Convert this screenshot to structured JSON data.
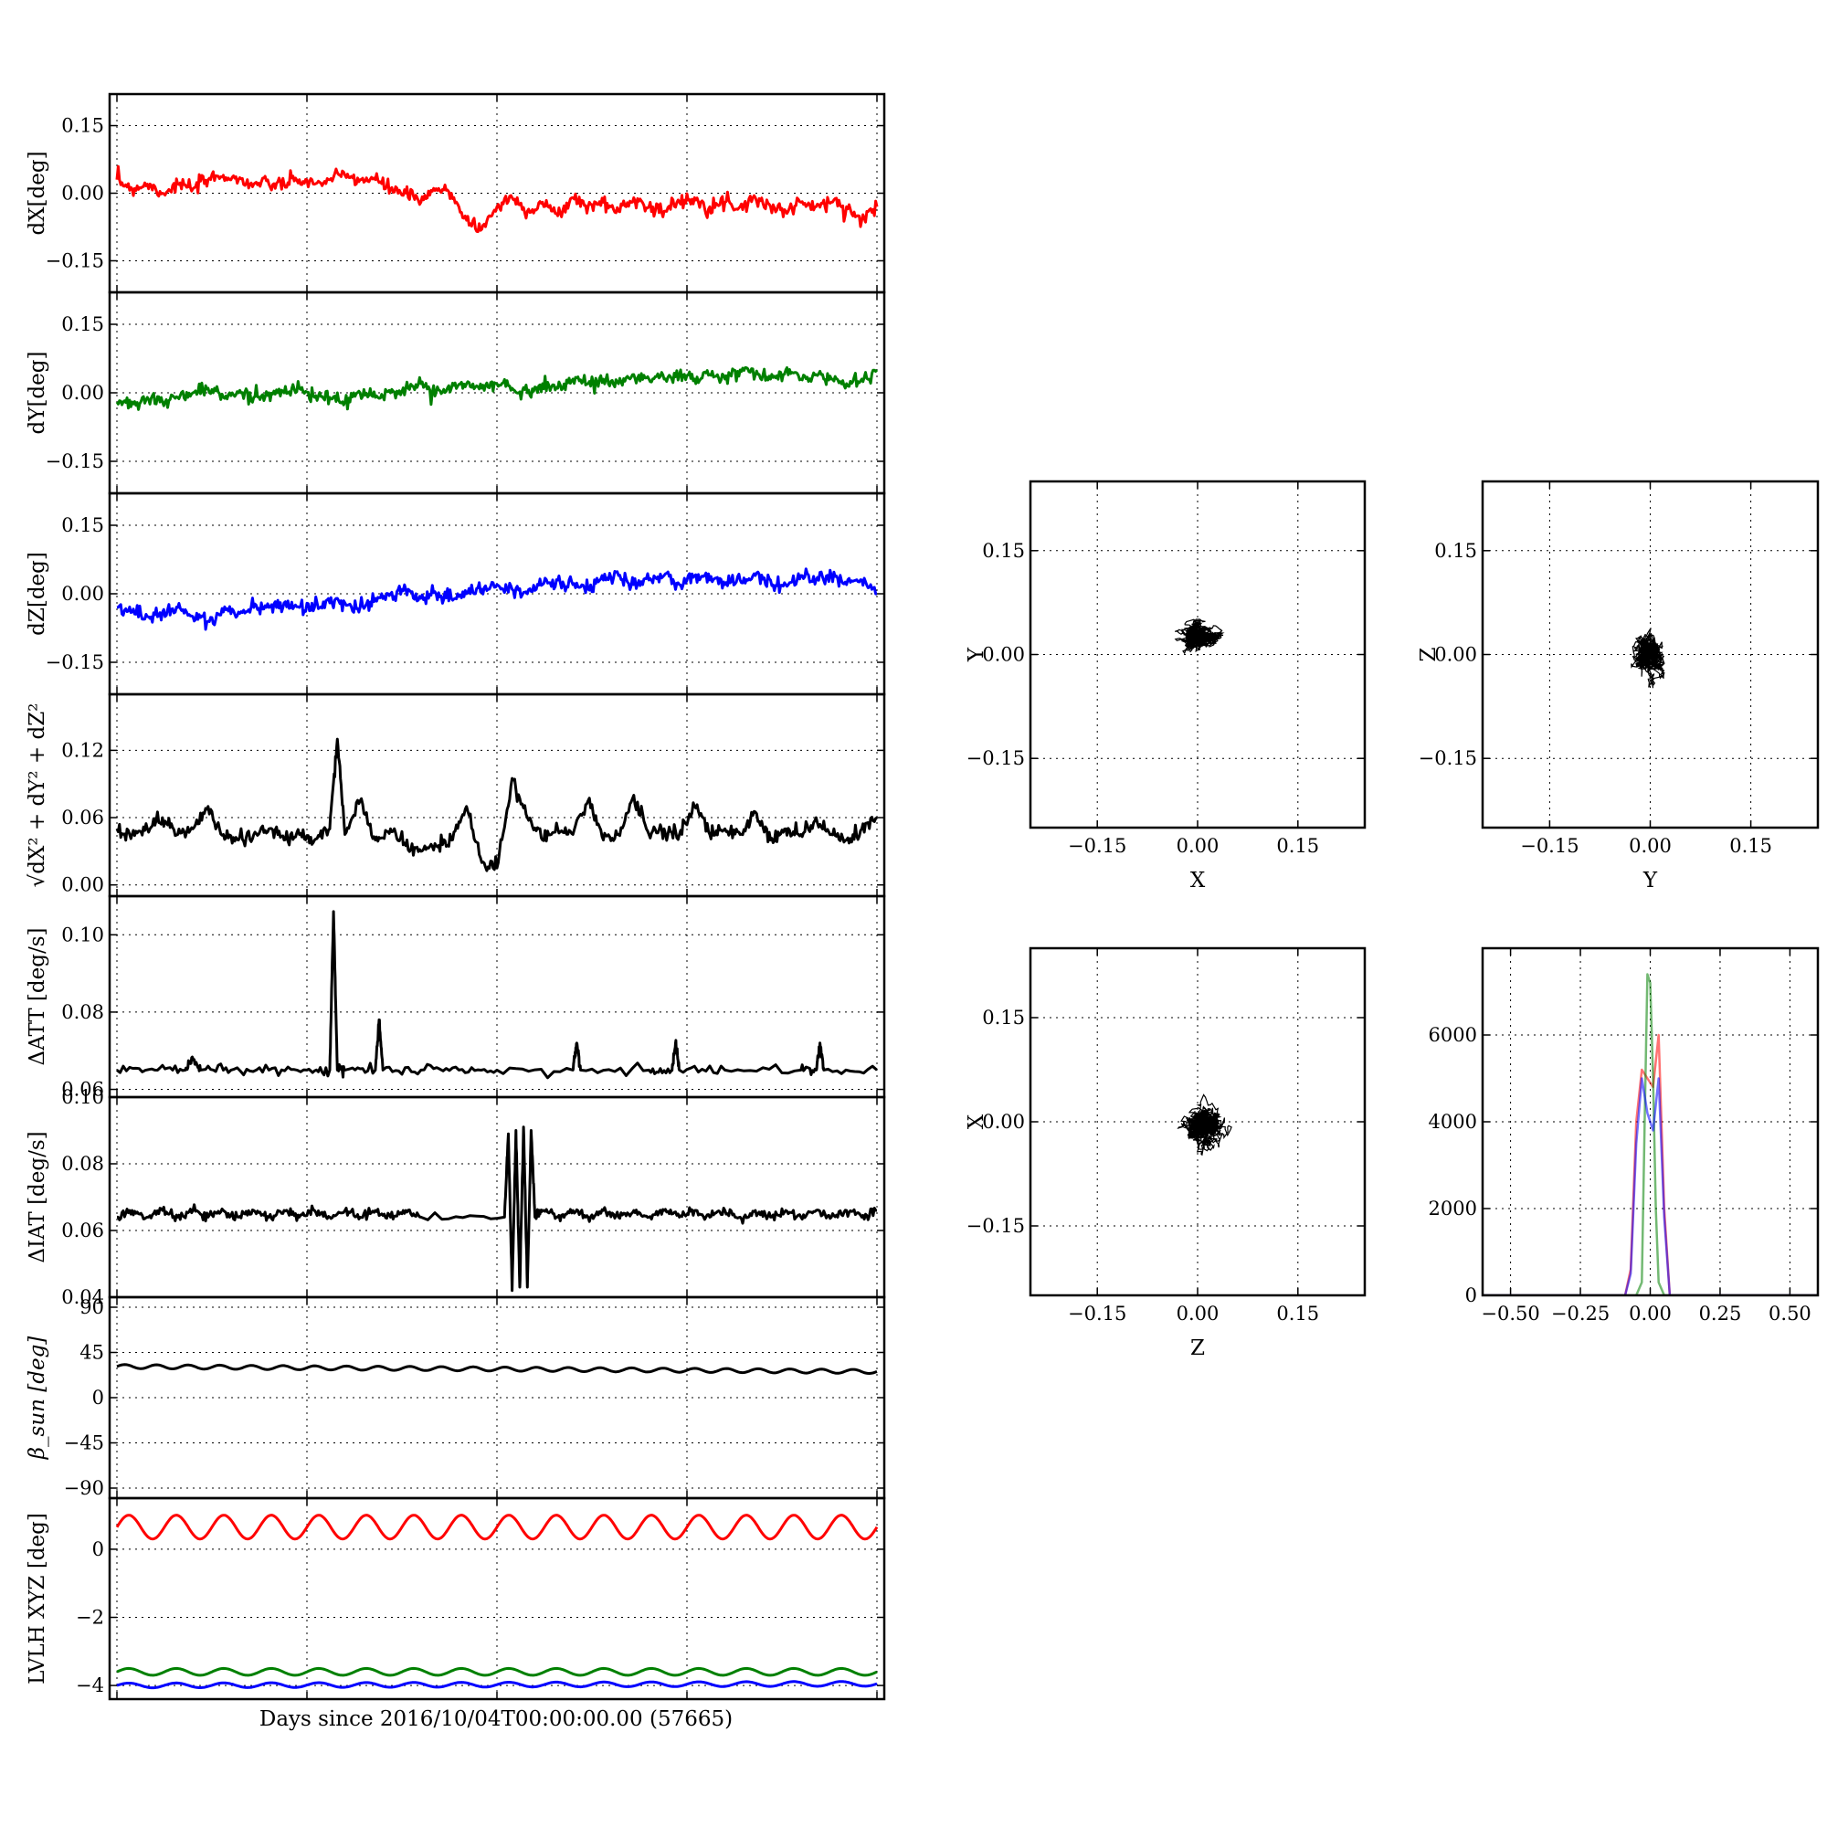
{
  "figure": {
    "xlabel": "Days since 2016/10/04T00:00:00.00 (57665)"
  },
  "chart_data": [
    {
      "id": "dx",
      "type": "line",
      "ylabel": "dX[deg]",
      "ylim": [
        -0.22,
        0.22
      ],
      "yticks": [
        0.15,
        0.0,
        -0.15
      ],
      "ytick_labels": [
        "0.15",
        "0.00",
        "−0.15"
      ],
      "xlim": [
        0,
        1
      ],
      "grid": true,
      "series": [
        {
          "color": "#ff0000",
          "x": [
            0,
            0.02,
            0.04,
            0.06,
            0.08,
            0.1,
            0.12,
            0.14,
            0.16,
            0.18,
            0.2,
            0.22,
            0.24,
            0.26,
            0.28,
            0.3,
            0.32,
            0.34,
            0.36,
            0.38,
            0.4,
            0.42,
            0.44,
            0.46,
            0.48,
            0.5,
            0.52,
            0.54,
            0.56,
            0.58,
            0.6,
            0.62,
            0.64,
            0.66,
            0.68,
            0.7,
            0.72,
            0.74,
            0.76,
            0.78,
            0.8,
            0.82,
            0.84,
            0.86,
            0.88,
            0.9,
            0.92,
            0.94,
            0.96,
            0.98,
            1.0
          ],
          "y": [
            0.03,
            0.01,
            0.02,
            0.0,
            0.02,
            0.01,
            0.03,
            0.04,
            0.03,
            0.02,
            0.02,
            0.02,
            0.03,
            0.02,
            0.03,
            0.04,
            0.03,
            0.03,
            0.01,
            0.0,
            -0.02,
            0.01,
            0.0,
            -0.06,
            -0.08,
            -0.03,
            -0.01,
            -0.04,
            -0.02,
            -0.05,
            -0.01,
            -0.03,
            -0.02,
            -0.04,
            -0.01,
            -0.03,
            -0.04,
            -0.02,
            -0.01,
            -0.03,
            -0.02,
            -0.03,
            -0.01,
            -0.03,
            -0.04,
            -0.02,
            -0.03,
            -0.02,
            -0.03,
            -0.06,
            -0.03
          ]
        }
      ]
    },
    {
      "id": "dy",
      "type": "line",
      "ylabel": "dY[deg]",
      "ylim": [
        -0.22,
        0.22
      ],
      "yticks": [
        0.15,
        0.0,
        -0.15
      ],
      "ytick_labels": [
        "0.15",
        "0.00",
        "−0.15"
      ],
      "xlim": [
        0,
        1
      ],
      "grid": true,
      "series": [
        {
          "color": "#008000",
          "x": [
            0,
            0.02,
            0.04,
            0.06,
            0.08,
            0.1,
            0.12,
            0.14,
            0.16,
            0.18,
            0.2,
            0.22,
            0.24,
            0.26,
            0.28,
            0.3,
            0.32,
            0.34,
            0.36,
            0.38,
            0.4,
            0.42,
            0.44,
            0.46,
            0.48,
            0.5,
            0.52,
            0.54,
            0.56,
            0.58,
            0.6,
            0.62,
            0.64,
            0.66,
            0.68,
            0.7,
            0.72,
            0.74,
            0.76,
            0.78,
            0.8,
            0.82,
            0.84,
            0.86,
            0.88,
            0.9,
            0.92,
            0.94,
            0.96,
            0.98,
            1.0
          ],
          "y": [
            -0.02,
            -0.02,
            -0.01,
            -0.02,
            -0.01,
            0.0,
            0.01,
            -0.01,
            0.0,
            -0.01,
            0.0,
            0.0,
            0.01,
            -0.01,
            -0.01,
            -0.02,
            0.0,
            -0.01,
            0.0,
            0.01,
            0.02,
            0.0,
            0.01,
            0.02,
            0.01,
            0.02,
            0.01,
            0.0,
            0.02,
            0.01,
            0.03,
            0.02,
            0.03,
            0.02,
            0.04,
            0.03,
            0.03,
            0.04,
            0.03,
            0.04,
            0.03,
            0.05,
            0.04,
            0.03,
            0.05,
            0.03,
            0.04,
            0.03,
            0.02,
            0.03,
            0.05
          ]
        }
      ]
    },
    {
      "id": "dz",
      "type": "line",
      "ylabel": "dZ[deg]",
      "ylim": [
        -0.22,
        0.22
      ],
      "yticks": [
        0.15,
        0.0,
        -0.15
      ],
      "ytick_labels": [
        "0.15",
        "0.00",
        "−0.15"
      ],
      "xlim": [
        0,
        1
      ],
      "grid": true,
      "series": [
        {
          "color": "#0000ff",
          "x": [
            0,
            0.02,
            0.04,
            0.06,
            0.08,
            0.1,
            0.12,
            0.14,
            0.16,
            0.18,
            0.2,
            0.22,
            0.24,
            0.26,
            0.28,
            0.3,
            0.32,
            0.34,
            0.36,
            0.38,
            0.4,
            0.42,
            0.44,
            0.46,
            0.48,
            0.5,
            0.52,
            0.54,
            0.56,
            0.58,
            0.6,
            0.62,
            0.64,
            0.66,
            0.68,
            0.7,
            0.72,
            0.74,
            0.76,
            0.78,
            0.8,
            0.82,
            0.84,
            0.86,
            0.88,
            0.9,
            0.92,
            0.94,
            0.96,
            0.98,
            1.0
          ],
          "y": [
            -0.03,
            -0.04,
            -0.05,
            -0.04,
            -0.03,
            -0.05,
            -0.06,
            -0.04,
            -0.04,
            -0.03,
            -0.03,
            -0.02,
            -0.03,
            -0.03,
            -0.02,
            -0.02,
            -0.03,
            -0.01,
            0.0,
            0.01,
            -0.01,
            0.0,
            -0.01,
            0.0,
            0.01,
            0.02,
            0.01,
            0.0,
            0.02,
            0.03,
            0.02,
            0.01,
            0.03,
            0.04,
            0.02,
            0.03,
            0.04,
            0.02,
            0.04,
            0.03,
            0.02,
            0.03,
            0.04,
            0.03,
            0.02,
            0.04,
            0.03,
            0.04,
            0.02,
            0.03,
            0.0
          ]
        }
      ]
    },
    {
      "id": "dr",
      "type": "line",
      "ylabel": "√dX² + dY² + dZ²",
      "ylim": [
        -0.01,
        0.17
      ],
      "yticks": [
        0.12,
        0.06,
        0.0
      ],
      "ytick_labels": [
        "0.12",
        "0.06",
        "0.00"
      ],
      "xlim": [
        0,
        1
      ],
      "grid": true,
      "series": [
        {
          "color": "#000000",
          "x": [
            0,
            0.02,
            0.04,
            0.06,
            0.08,
            0.1,
            0.12,
            0.14,
            0.16,
            0.18,
            0.2,
            0.22,
            0.24,
            0.26,
            0.28,
            0.29,
            0.3,
            0.32,
            0.34,
            0.36,
            0.38,
            0.4,
            0.42,
            0.44,
            0.46,
            0.48,
            0.5,
            0.52,
            0.54,
            0.56,
            0.58,
            0.6,
            0.62,
            0.64,
            0.66,
            0.68,
            0.7,
            0.72,
            0.74,
            0.76,
            0.78,
            0.8,
            0.82,
            0.84,
            0.86,
            0.88,
            0.9,
            0.92,
            0.94,
            0.96,
            0.98,
            1.0
          ],
          "y": [
            0.05,
            0.045,
            0.05,
            0.06,
            0.045,
            0.05,
            0.07,
            0.045,
            0.04,
            0.045,
            0.05,
            0.04,
            0.045,
            0.04,
            0.05,
            0.13,
            0.045,
            0.075,
            0.04,
            0.05,
            0.035,
            0.03,
            0.035,
            0.04,
            0.07,
            0.02,
            0.015,
            0.095,
            0.06,
            0.04,
            0.05,
            0.045,
            0.075,
            0.04,
            0.045,
            0.08,
            0.045,
            0.05,
            0.045,
            0.07,
            0.045,
            0.05,
            0.045,
            0.065,
            0.04,
            0.05,
            0.045,
            0.06,
            0.045,
            0.04,
            0.05,
            0.06
          ]
        }
      ]
    },
    {
      "id": "datt",
      "type": "line",
      "ylabel": "ΔATT [deg/s]",
      "ylim": [
        0.058,
        0.11
      ],
      "yticks": [
        0.1,
        0.08,
        0.06
      ],
      "ytick_labels": [
        "0.10",
        "0.08",
        "0.06"
      ],
      "xlim": [
        0,
        1
      ],
      "grid": true,
      "series": [
        {
          "color": "#000000",
          "x": [
            0,
            0.05,
            0.09,
            0.1,
            0.11,
            0.15,
            0.2,
            0.25,
            0.28,
            0.285,
            0.29,
            0.3,
            0.34,
            0.345,
            0.35,
            0.4,
            0.45,
            0.5,
            0.6,
            0.605,
            0.61,
            0.7,
            0.73,
            0.735,
            0.74,
            0.8,
            0.9,
            0.92,
            0.925,
            0.93,
            1.0
          ],
          "y": [
            0.065,
            0.065,
            0.065,
            0.068,
            0.065,
            0.065,
            0.065,
            0.065,
            0.065,
            0.106,
            0.065,
            0.065,
            0.065,
            0.078,
            0.065,
            0.065,
            0.065,
            0.065,
            0.065,
            0.072,
            0.065,
            0.065,
            0.065,
            0.072,
            0.065,
            0.065,
            0.065,
            0.065,
            0.072,
            0.065,
            0.065
          ]
        }
      ]
    },
    {
      "id": "diat",
      "type": "line",
      "ylabel": "ΔIAT [deg/s]",
      "ylim": [
        0.04,
        0.1
      ],
      "yticks": [
        0.1,
        0.08,
        0.06,
        0.04
      ],
      "ytick_labels": [
        "0.10",
        "0.08",
        "0.06",
        "0.04"
      ],
      "xlim": [
        0,
        1
      ],
      "grid": true,
      "series": [
        {
          "color": "#000000",
          "x": [
            0,
            0.02,
            0.04,
            0.06,
            0.08,
            0.1,
            0.12,
            0.14,
            0.16,
            0.18,
            0.2,
            0.22,
            0.24,
            0.26,
            0.28,
            0.3,
            0.32,
            0.34,
            0.36,
            0.38,
            0.4,
            0.51,
            0.515,
            0.52,
            0.525,
            0.53,
            0.535,
            0.54,
            0.545,
            0.55,
            0.56,
            0.58,
            0.6,
            0.62,
            0.64,
            0.66,
            0.68,
            0.7,
            0.72,
            0.74,
            0.76,
            0.78,
            0.8,
            0.82,
            0.84,
            0.86,
            0.88,
            0.9,
            0.92,
            0.94,
            0.96,
            0.98,
            1.0
          ],
          "y": [
            0.064,
            0.066,
            0.064,
            0.066,
            0.064,
            0.066,
            0.064,
            0.066,
            0.064,
            0.066,
            0.064,
            0.066,
            0.064,
            0.066,
            0.064,
            0.066,
            0.064,
            0.066,
            0.064,
            0.066,
            0.064,
            0.064,
            0.089,
            0.042,
            0.09,
            0.043,
            0.091,
            0.043,
            0.09,
            0.064,
            0.066,
            0.064,
            0.066,
            0.064,
            0.066,
            0.064,
            0.066,
            0.064,
            0.066,
            0.064,
            0.066,
            0.064,
            0.066,
            0.064,
            0.066,
            0.064,
            0.066,
            0.064,
            0.066,
            0.064,
            0.066,
            0.064,
            0.066
          ]
        }
      ]
    },
    {
      "id": "beta",
      "type": "line",
      "ylabel": "β_sun [deg]",
      "ylim": [
        -100,
        100
      ],
      "yticks": [
        90,
        45,
        0,
        -45,
        -90
      ],
      "ytick_labels": [
        "90",
        "45",
        "0",
        "−45",
        "−90"
      ],
      "xlim": [
        0,
        1
      ],
      "grid": true,
      "series": [
        {
          "color": "#000000",
          "x": [
            0,
            0.1,
            0.2,
            0.3,
            0.4,
            0.5,
            0.6,
            0.7,
            0.8,
            0.9,
            1.0
          ],
          "y": [
            31,
            31,
            30,
            30,
            29,
            29,
            28,
            28,
            28,
            27,
            26
          ]
        }
      ]
    },
    {
      "id": "lvlh",
      "type": "line",
      "ylabel": "LVLH XYZ [deg]",
      "ylim": [
        -4.4,
        1.5
      ],
      "yticks": [
        0,
        -2,
        -4
      ],
      "ytick_labels": [
        "0",
        "−2",
        "−4"
      ],
      "xlim": [
        0,
        1
      ],
      "grid": true,
      "series": [
        {
          "color": "#ff0000",
          "x": [
            0,
            1.0
          ],
          "y": [
            0.65,
            0.65
          ]
        },
        {
          "color": "#008000",
          "x": [
            0,
            1.0
          ],
          "y": [
            -3.6,
            -3.6
          ]
        },
        {
          "color": "#0000ff",
          "x": [
            0,
            1.0
          ],
          "y": [
            -4.0,
            -3.95
          ]
        }
      ]
    },
    {
      "id": "scatter_xy",
      "type": "scatter",
      "xlabel": "X",
      "ylabel": "Y",
      "xlim": [
        -0.25,
        0.25
      ],
      "ylim": [
        -0.25,
        0.25
      ],
      "xticks": [
        -0.15,
        0.0,
        0.15
      ],
      "xtick_labels": [
        "−0.15",
        "0.00",
        "0.15"
      ],
      "yticks": [
        0.15,
        0.0,
        -0.15
      ],
      "ytick_labels": [
        "0.15",
        "0.00",
        "−0.15"
      ],
      "grid": true,
      "color": "#000000",
      "center": [
        0.0,
        0.025
      ],
      "spread": [
        0.035,
        0.02
      ]
    },
    {
      "id": "scatter_yz",
      "type": "scatter",
      "xlabel": "Y",
      "ylabel": "Z",
      "xlim": [
        -0.25,
        0.25
      ],
      "ylim": [
        -0.25,
        0.25
      ],
      "xticks": [
        -0.15,
        0.0,
        0.15
      ],
      "xtick_labels": [
        "−0.15",
        "0.00",
        "0.15"
      ],
      "yticks": [
        0.15,
        0.0,
        -0.15
      ],
      "ytick_labels": [
        "0.15",
        "0.00",
        "−0.15"
      ],
      "grid": true,
      "color": "#000000",
      "center": [
        0.0,
        0.0
      ],
      "spread": [
        0.025,
        0.035
      ]
    },
    {
      "id": "scatter_zx",
      "type": "scatter",
      "xlabel": "Z",
      "ylabel": "X",
      "xlim": [
        -0.25,
        0.25
      ],
      "ylim": [
        -0.25,
        0.25
      ],
      "xticks": [
        -0.15,
        0.0,
        0.15
      ],
      "xtick_labels": [
        "−0.15",
        "0.00",
        "0.15"
      ],
      "yticks": [
        0.15,
        0.0,
        -0.15
      ],
      "ytick_labels": [
        "0.15",
        "0.00",
        "−0.15"
      ],
      "grid": true,
      "color": "#000000",
      "center": [
        0.01,
        -0.005
      ],
      "spread": [
        0.03,
        0.035
      ]
    },
    {
      "id": "histogram",
      "type": "line",
      "xlim": [
        -0.6,
        0.6
      ],
      "ylim": [
        0,
        8000
      ],
      "xticks": [
        -0.5,
        -0.25,
        0.0,
        0.25,
        0.5
      ],
      "xtick_labels": [
        "−0.50",
        "−0.25",
        "0.00",
        "0.25",
        "0.50"
      ],
      "yticks": [
        6000,
        4000,
        2000,
        0
      ],
      "ytick_labels": [
        "6000",
        "4000",
        "2000",
        "0"
      ],
      "grid": true,
      "series": [
        {
          "color": "#ff0000",
          "x": [
            -0.6,
            -0.09,
            -0.07,
            -0.05,
            -0.03,
            -0.01,
            0.01,
            0.03,
            0.05,
            0.07,
            0.6
          ],
          "y": [
            0,
            0,
            600,
            4000,
            5200,
            5000,
            4800,
            6000,
            2000,
            0,
            0
          ]
        },
        {
          "color": "#008000",
          "x": [
            -0.6,
            -0.05,
            -0.03,
            -0.02,
            -0.01,
            0.0,
            0.01,
            0.02,
            0.03,
            0.05,
            0.6
          ],
          "y": [
            0,
            0,
            300,
            4000,
            7400,
            7200,
            5000,
            2000,
            300,
            0,
            0
          ]
        },
        {
          "color": "#0000ff",
          "x": [
            -0.6,
            -0.09,
            -0.07,
            -0.05,
            -0.03,
            -0.01,
            0.01,
            0.03,
            0.05,
            0.07,
            0.6
          ],
          "y": [
            0,
            0,
            500,
            3500,
            5000,
            4200,
            3800,
            5000,
            1800,
            0,
            0
          ]
        }
      ]
    }
  ]
}
